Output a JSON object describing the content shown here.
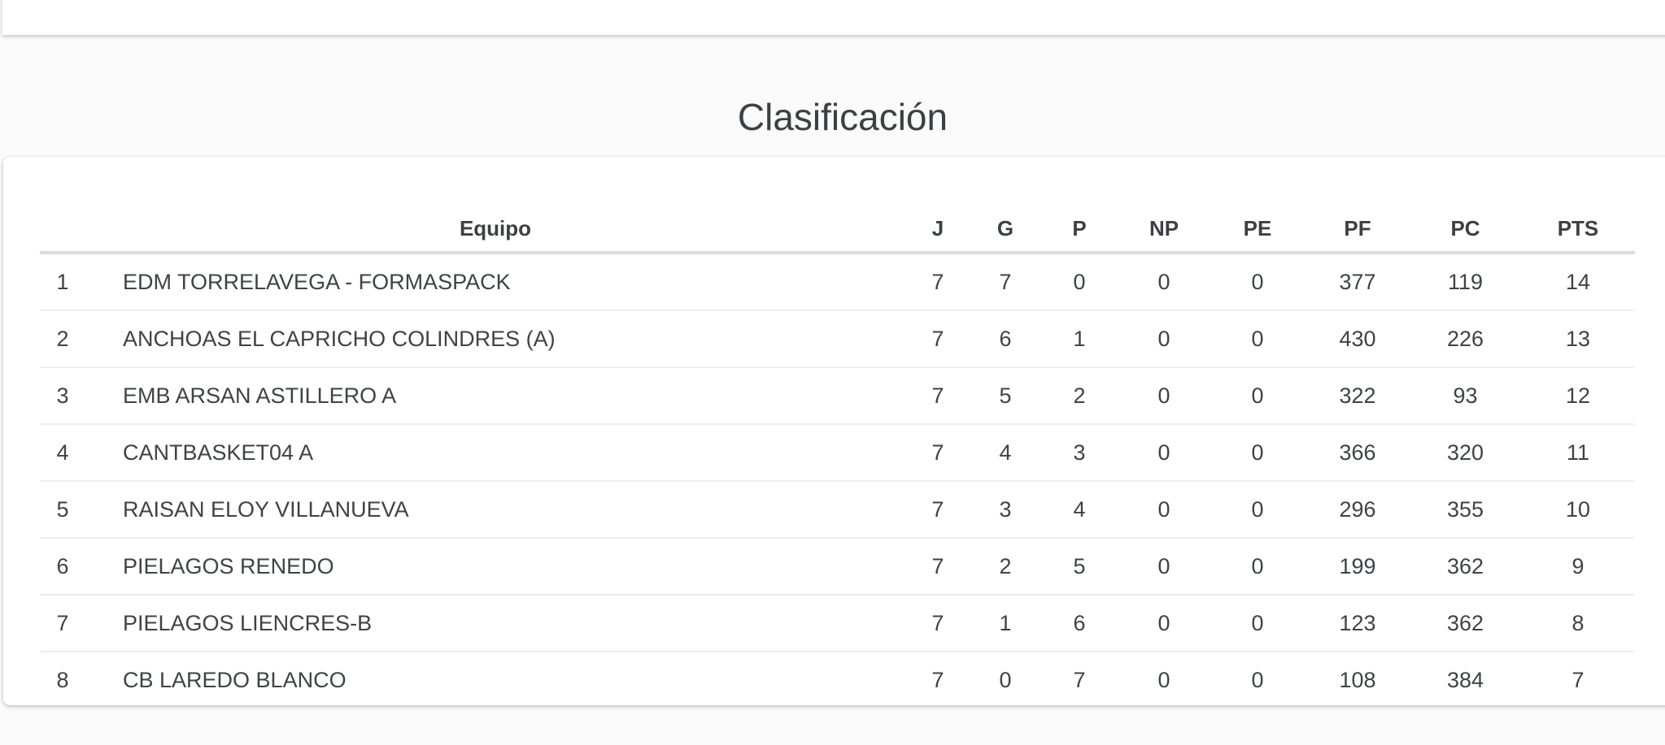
{
  "page": {
    "title": "Clasificación",
    "background_color": "#fafafa",
    "card_color": "#ffffff",
    "text_color": "#3c4043"
  },
  "standings": {
    "columns": [
      {
        "key": "rank",
        "label": ""
      },
      {
        "key": "team",
        "label": "Equipo"
      },
      {
        "key": "j",
        "label": "J"
      },
      {
        "key": "g",
        "label": "G"
      },
      {
        "key": "p",
        "label": "P"
      },
      {
        "key": "np",
        "label": "NP"
      },
      {
        "key": "pe",
        "label": "PE"
      },
      {
        "key": "pf",
        "label": "PF"
      },
      {
        "key": "pc",
        "label": "PC"
      },
      {
        "key": "pts",
        "label": "PTS"
      }
    ],
    "rows": [
      {
        "rank": "1",
        "team": "EDM TORRELAVEGA - FORMASPACK",
        "j": "7",
        "g": "7",
        "p": "0",
        "np": "0",
        "pe": "0",
        "pf": "377",
        "pc": "119",
        "pts": "14"
      },
      {
        "rank": "2",
        "team": "ANCHOAS EL CAPRICHO COLINDRES (A)",
        "j": "7",
        "g": "6",
        "p": "1",
        "np": "0",
        "pe": "0",
        "pf": "430",
        "pc": "226",
        "pts": "13"
      },
      {
        "rank": "3",
        "team": "EMB ARSAN ASTILLERO A",
        "j": "7",
        "g": "5",
        "p": "2",
        "np": "0",
        "pe": "0",
        "pf": "322",
        "pc": "93",
        "pts": "12"
      },
      {
        "rank": "4",
        "team": "CANTBASKET04 A",
        "j": "7",
        "g": "4",
        "p": "3",
        "np": "0",
        "pe": "0",
        "pf": "366",
        "pc": "320",
        "pts": "11"
      },
      {
        "rank": "5",
        "team": "RAISAN ELOY VILLANUEVA",
        "j": "7",
        "g": "3",
        "p": "4",
        "np": "0",
        "pe": "0",
        "pf": "296",
        "pc": "355",
        "pts": "10"
      },
      {
        "rank": "6",
        "team": "PIELAGOS RENEDO",
        "j": "7",
        "g": "2",
        "p": "5",
        "np": "0",
        "pe": "0",
        "pf": "199",
        "pc": "362",
        "pts": "9"
      },
      {
        "rank": "7",
        "team": "PIELAGOS LIENCRES-B",
        "j": "7",
        "g": "1",
        "p": "6",
        "np": "0",
        "pe": "0",
        "pf": "123",
        "pc": "362",
        "pts": "8"
      },
      {
        "rank": "8",
        "team": "CB LAREDO BLANCO",
        "j": "7",
        "g": "0",
        "p": "7",
        "np": "0",
        "pe": "0",
        "pf": "108",
        "pc": "384",
        "pts": "7"
      }
    ]
  }
}
